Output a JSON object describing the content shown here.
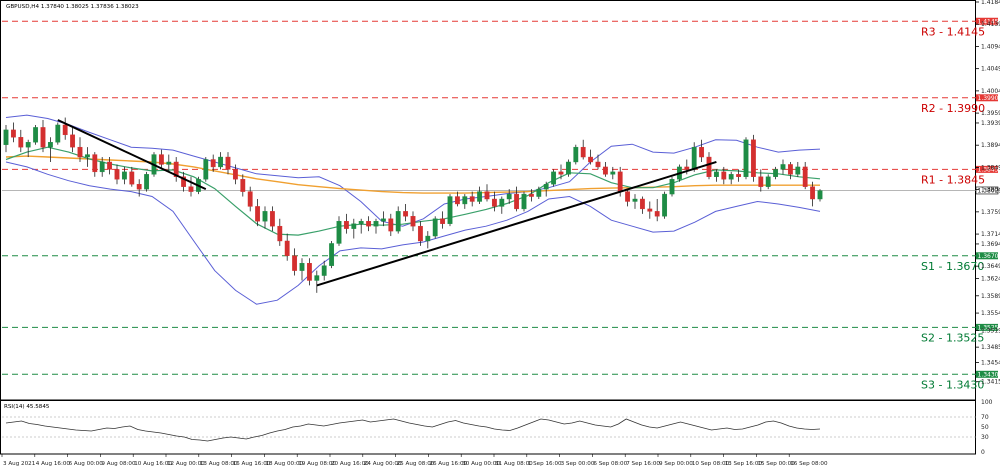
{
  "chart_data": {
    "type": "candlestick",
    "title": "GBPUSD,H4  1.37840 1.38025 1.37836 1.38023",
    "symbol": "GBPUSD",
    "timeframe": "H4",
    "ohlc_header": {
      "open": 1.3784,
      "high": 1.38025,
      "low": 1.37836,
      "close": 1.38023
    },
    "current_price": 1.38023,
    "ylim": [
      1.3382,
      1.4184
    ],
    "y_ticks": [
      "1.41840",
      "1.41390",
      "1.40940",
      "1.40490",
      "1.40040",
      "1.39590",
      "1.39390",
      "1.38940",
      "1.38490",
      "1.38040",
      "1.37590",
      "1.37140",
      "1.36940",
      "1.36490",
      "1.36240",
      "1.35890",
      "1.35540",
      "1.35190",
      "1.34850",
      "1.34540",
      "1.34150",
      "1.33800"
    ],
    "x_ticks": [
      "3 Aug 2021",
      "4 Aug 16:00",
      "6 Aug 00:00",
      "9 Aug 08:00",
      "10 Aug 16:00",
      "12 Aug 00:00",
      "13 Aug 08:00",
      "16 Aug 16:00",
      "18 Aug 00:00",
      "19 Aug 08:00",
      "20 Aug 16:00",
      "24 Aug 00:00",
      "25 Aug 08:00",
      "26 Aug 16:00",
      "30 Aug 00:00",
      "31 Aug 08:00",
      "1 Sep 16:00",
      "3 Sep 00:00",
      "6 Sep 08:00",
      "7 Sep 16:00",
      "9 Sep 00:00",
      "10 Sep 08:00",
      "13 Sep 16:00",
      "15 Sep 00:00",
      "16 Sep 08:00"
    ],
    "levels": [
      {
        "name": "R3",
        "label": "R3 - 1.4145",
        "value": 1.4145,
        "price_tag": "1.41450",
        "color": "#e53935"
      },
      {
        "name": "R2",
        "label": "R2 - 1.3990",
        "value": 1.399,
        "price_tag": "1.39900",
        "color": "#e53935"
      },
      {
        "name": "R1",
        "label": "R1 - 1.3845",
        "value": 1.3845,
        "price_tag": "1.38450",
        "color": "#e53935"
      },
      {
        "name": "S1",
        "label": "S1 - 1.3670",
        "value": 1.367,
        "price_tag": "1.36700",
        "color": "#1e8c45"
      },
      {
        "name": "S2",
        "label": "S2 - 1.3525",
        "value": 1.3525,
        "price_tag": "1.35250",
        "color": "#1e8c45"
      },
      {
        "name": "S3",
        "label": "S3 - 1.3430",
        "value": 1.343,
        "price_tag": "1.34300",
        "color": "#1e8c45"
      }
    ],
    "candles": [
      [
        1.3895,
        1.3935,
        1.388,
        1.3925
      ],
      [
        1.3925,
        1.394,
        1.39,
        1.391
      ],
      [
        1.391,
        1.3925,
        1.388,
        1.389
      ],
      [
        1.389,
        1.3905,
        1.387,
        1.39
      ],
      [
        1.39,
        1.3935,
        1.3895,
        1.393
      ],
      [
        1.393,
        1.3945,
        1.388,
        1.389
      ],
      [
        1.389,
        1.391,
        1.386,
        1.39
      ],
      [
        1.39,
        1.394,
        1.3895,
        1.3935
      ],
      [
        1.3935,
        1.395,
        1.3905,
        1.3915
      ],
      [
        1.3915,
        1.393,
        1.388,
        1.389
      ],
      [
        1.389,
        1.391,
        1.386,
        1.387
      ],
      [
        1.387,
        1.389,
        1.385,
        1.3875
      ],
      [
        1.3875,
        1.388,
        1.383,
        1.384
      ],
      [
        1.384,
        1.387,
        1.383,
        1.386
      ],
      [
        1.386,
        1.387,
        1.3835,
        1.3845
      ],
      [
        1.3845,
        1.3855,
        1.3815,
        1.3825
      ],
      [
        1.3825,
        1.385,
        1.3815,
        1.384
      ],
      [
        1.384,
        1.385,
        1.381,
        1.3815
      ],
      [
        1.3815,
        1.3825,
        1.379,
        1.3805
      ],
      [
        1.3805,
        1.384,
        1.38,
        1.3835
      ],
      [
        1.3835,
        1.388,
        1.383,
        1.3875
      ],
      [
        1.3875,
        1.3885,
        1.3845,
        1.3855
      ],
      [
        1.3855,
        1.3875,
        1.384,
        1.386
      ],
      [
        1.386,
        1.387,
        1.382,
        1.383
      ],
      [
        1.383,
        1.384,
        1.38,
        1.381
      ],
      [
        1.381,
        1.383,
        1.379,
        1.38
      ],
      [
        1.38,
        1.383,
        1.3795,
        1.3825
      ],
      [
        1.3825,
        1.387,
        1.382,
        1.3865
      ],
      [
        1.3865,
        1.3875,
        1.384,
        1.385
      ],
      [
        1.385,
        1.388,
        1.3845,
        1.387
      ],
      [
        1.387,
        1.388,
        1.3835,
        1.3845
      ],
      [
        1.3845,
        1.3855,
        1.3815,
        1.3825
      ],
      [
        1.3825,
        1.3835,
        1.379,
        1.38
      ],
      [
        1.38,
        1.381,
        1.376,
        1.377
      ],
      [
        1.377,
        1.3785,
        1.373,
        1.374
      ],
      [
        1.374,
        1.377,
        1.3725,
        1.376
      ],
      [
        1.376,
        1.377,
        1.372,
        1.373
      ],
      [
        1.373,
        1.3745,
        1.369,
        1.37
      ],
      [
        1.37,
        1.3715,
        1.366,
        1.367
      ],
      [
        1.367,
        1.3685,
        1.363,
        1.364
      ],
      [
        1.364,
        1.3665,
        1.362,
        1.3655
      ],
      [
        1.3655,
        1.3665,
        1.361,
        1.362
      ],
      [
        1.362,
        1.364,
        1.3595,
        1.363
      ],
      [
        1.363,
        1.366,
        1.362,
        1.365
      ],
      [
        1.365,
        1.37,
        1.3645,
        1.3695
      ],
      [
        1.3695,
        1.375,
        1.369,
        1.374
      ],
      [
        1.374,
        1.3755,
        1.3715,
        1.3725
      ],
      [
        1.3725,
        1.3745,
        1.3705,
        1.3735
      ],
      [
        1.3735,
        1.3745,
        1.3715,
        1.374
      ],
      [
        1.374,
        1.375,
        1.372,
        1.373
      ],
      [
        1.373,
        1.3745,
        1.3715,
        1.374
      ],
      [
        1.374,
        1.376,
        1.373,
        1.3745
      ],
      [
        1.3745,
        1.3755,
        1.371,
        1.372
      ],
      [
        1.372,
        1.377,
        1.3715,
        1.376
      ],
      [
        1.376,
        1.3775,
        1.374,
        1.375
      ],
      [
        1.375,
        1.376,
        1.372,
        1.373
      ],
      [
        1.373,
        1.374,
        1.369,
        1.37
      ],
      [
        1.37,
        1.372,
        1.3685,
        1.371
      ],
      [
        1.371,
        1.375,
        1.3705,
        1.3745
      ],
      [
        1.3745,
        1.376,
        1.3725,
        1.3735
      ],
      [
        1.3735,
        1.3795,
        1.373,
        1.379
      ],
      [
        1.379,
        1.38,
        1.377,
        1.3775
      ],
      [
        1.3775,
        1.3795,
        1.3765,
        1.379
      ],
      [
        1.379,
        1.38,
        1.377,
        1.378
      ],
      [
        1.378,
        1.381,
        1.3775,
        1.38
      ],
      [
        1.38,
        1.3815,
        1.378,
        1.3785
      ],
      [
        1.3785,
        1.38,
        1.376,
        1.377
      ],
      [
        1.377,
        1.379,
        1.3755,
        1.3785
      ],
      [
        1.3785,
        1.3805,
        1.3775,
        1.3795
      ],
      [
        1.3795,
        1.381,
        1.376,
        1.3765
      ],
      [
        1.3765,
        1.38,
        1.376,
        1.3795
      ],
      [
        1.3795,
        1.3805,
        1.378,
        1.379
      ],
      [
        1.379,
        1.381,
        1.3785,
        1.3805
      ],
      [
        1.3805,
        1.382,
        1.379,
        1.3815
      ],
      [
        1.3815,
        1.3845,
        1.381,
        1.384
      ],
      [
        1.384,
        1.3855,
        1.3825,
        1.3835
      ],
      [
        1.3835,
        1.3865,
        1.383,
        1.386
      ],
      [
        1.386,
        1.3895,
        1.3855,
        1.389
      ],
      [
        1.389,
        1.3905,
        1.3865,
        1.387
      ],
      [
        1.387,
        1.3885,
        1.3855,
        1.386
      ],
      [
        1.386,
        1.3875,
        1.3845,
        1.385
      ],
      [
        1.385,
        1.386,
        1.383,
        1.3835
      ],
      [
        1.3835,
        1.385,
        1.3825,
        1.384
      ],
      [
        1.384,
        1.385,
        1.379,
        1.38
      ],
      [
        1.38,
        1.3805,
        1.377,
        1.378
      ],
      [
        1.378,
        1.3795,
        1.3765,
        1.3785
      ],
      [
        1.3785,
        1.379,
        1.3755,
        1.3765
      ],
      [
        1.3765,
        1.378,
        1.3745,
        1.376
      ],
      [
        1.376,
        1.3785,
        1.374,
        1.375
      ],
      [
        1.375,
        1.38,
        1.3745,
        1.3795
      ],
      [
        1.3795,
        1.383,
        1.379,
        1.3825
      ],
      [
        1.3825,
        1.3855,
        1.382,
        1.385
      ],
      [
        1.385,
        1.3865,
        1.3835,
        1.3845
      ],
      [
        1.3845,
        1.39,
        1.384,
        1.389
      ],
      [
        1.389,
        1.3905,
        1.386,
        1.387
      ],
      [
        1.387,
        1.388,
        1.3825,
        1.383
      ],
      [
        1.383,
        1.3845,
        1.382,
        1.384
      ],
      [
        1.384,
        1.385,
        1.3815,
        1.3825
      ],
      [
        1.3825,
        1.384,
        1.3815,
        1.3835
      ],
      [
        1.3835,
        1.3845,
        1.382,
        1.383
      ],
      [
        1.383,
        1.391,
        1.3825,
        1.3905
      ],
      [
        1.3905,
        1.3915,
        1.382,
        1.383
      ],
      [
        1.383,
        1.3845,
        1.38,
        1.381
      ],
      [
        1.381,
        1.3835,
        1.3805,
        1.383
      ],
      [
        1.383,
        1.385,
        1.3825,
        1.3845
      ],
      [
        1.3845,
        1.3865,
        1.3835,
        1.3855
      ],
      [
        1.3855,
        1.386,
        1.3825,
        1.3835
      ],
      [
        1.3835,
        1.386,
        1.383,
        1.385
      ],
      [
        1.385,
        1.386,
        1.3805,
        1.381
      ],
      [
        1.381,
        1.382,
        1.377,
        1.3785
      ],
      [
        1.3785,
        1.3805,
        1.378,
        1.3802
      ]
    ],
    "overlays": {
      "bollinger_upper": [
        1.395,
        1.3955,
        1.3948,
        1.3936,
        1.392,
        1.3905,
        1.389,
        1.3888,
        1.3884,
        1.3872,
        1.386,
        1.3848,
        1.3836,
        1.3832,
        1.3828,
        1.383,
        1.3812,
        1.378,
        1.374,
        1.373,
        1.3745,
        1.3775,
        1.3785,
        1.379,
        1.3796,
        1.38,
        1.3808,
        1.382,
        1.386,
        1.3892,
        1.3896,
        1.388,
        1.3878,
        1.389,
        1.3905,
        1.3904,
        1.389,
        1.388,
        1.3884,
        1.3886
      ],
      "bollinger_lower": [
        1.386,
        1.385,
        1.3835,
        1.3822,
        1.3812,
        1.3805,
        1.38,
        1.379,
        1.376,
        1.37,
        1.364,
        1.36,
        1.3572,
        1.358,
        1.361,
        1.365,
        1.368,
        1.3686,
        1.3684,
        1.3692,
        1.3698,
        1.371,
        1.3722,
        1.373,
        1.3742,
        1.376,
        1.3785,
        1.379,
        1.377,
        1.3742,
        1.373,
        1.3718,
        1.372,
        1.3738,
        1.376,
        1.377,
        1.378,
        1.3775,
        1.3768,
        1.376
      ],
      "moving_average_short": [
        1.3865,
        1.388,
        1.389,
        1.388,
        1.3866,
        1.3856,
        1.3848,
        1.3842,
        1.3844,
        1.383,
        1.3806,
        1.377,
        1.3735,
        1.3714,
        1.3712,
        1.372,
        1.373,
        1.3734,
        1.3732,
        1.3734,
        1.374,
        1.3745,
        1.3754,
        1.3764,
        1.3776,
        1.3792,
        1.3818,
        1.3838,
        1.3836,
        1.3818,
        1.3808,
        1.3808,
        1.3818,
        1.3834,
        1.3844,
        1.3842,
        1.3838,
        1.3836,
        1.383,
        1.3826
      ],
      "moving_average_long": [
        1.387,
        1.3872,
        1.387,
        1.3868,
        1.3866,
        1.3864,
        1.3862,
        1.386,
        1.3856,
        1.385,
        1.3842,
        1.3834,
        1.3826,
        1.382,
        1.3814,
        1.381,
        1.3806,
        1.3803,
        1.38,
        1.3798,
        1.3797,
        1.3797,
        1.3797,
        1.3798,
        1.3799,
        1.38,
        1.3802,
        1.3804,
        1.3806,
        1.3807,
        1.3808,
        1.3809,
        1.381,
        1.3812,
        1.3813,
        1.3813,
        1.3813,
        1.3813,
        1.3813,
        1.3813
      ]
    },
    "trendlines": [
      {
        "from_candle": 7,
        "from_price": 1.3945,
        "to_candle": 27,
        "to_price": 1.3805
      },
      {
        "from_candle": 42,
        "from_price": 1.361,
        "to_candle": 96,
        "to_price": 1.386
      }
    ],
    "rsi": {
      "label": "RSI(14) 45.5845",
      "period": 14,
      "value": 45.5845,
      "ylim": [
        0,
        100
      ],
      "ticks": [
        "100",
        "70",
        "50",
        "30",
        "0"
      ],
      "levels": [
        70,
        30
      ],
      "values": [
        58,
        60,
        62,
        57,
        55,
        52,
        50,
        48,
        46,
        44,
        43,
        42,
        45,
        48,
        47,
        50,
        52,
        45,
        42,
        40,
        38,
        35,
        32,
        30,
        25,
        24,
        22,
        25,
        28,
        30,
        28,
        26,
        30,
        33,
        38,
        42,
        45,
        50,
        52,
        56,
        54,
        52,
        55,
        58,
        60,
        62,
        64,
        60,
        62,
        64,
        66,
        62,
        58,
        55,
        52,
        50,
        55,
        60,
        63,
        58,
        55,
        52,
        50,
        46,
        44,
        43,
        48,
        54,
        60,
        66,
        64,
        60,
        56,
        58,
        62,
        58,
        54,
        52,
        50,
        56,
        66,
        60,
        54,
        50,
        48,
        52,
        56,
        60,
        56,
        52,
        48,
        44,
        46,
        48,
        45,
        46,
        50,
        54,
        60,
        62,
        58,
        52,
        48,
        46,
        45,
        46
      ]
    }
  }
}
